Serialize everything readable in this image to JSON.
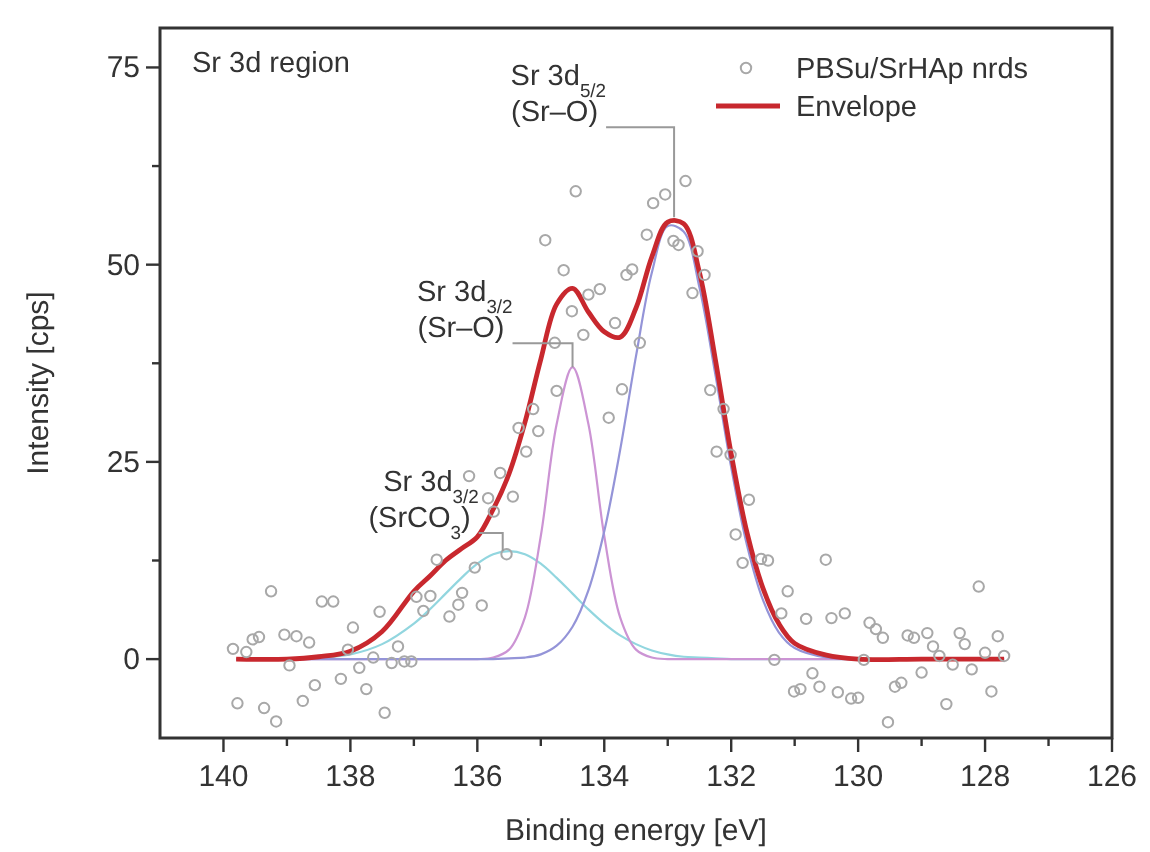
{
  "chart_data": {
    "type": "line",
    "xlabel": "Binding energy [eV]",
    "ylabel": "Intensity [cps]",
    "xlim": [
      141,
      126
    ],
    "ylim": [
      -10,
      80
    ],
    "xticks": [
      140,
      {
        "value": 139,
        "label": null
      },
      138,
      {
        "value": 137,
        "label": null
      },
      136,
      {
        "value": 135,
        "label": null
      },
      134,
      {
        "value": 133,
        "label": null
      },
      132,
      {
        "value": 131,
        "label": null
      },
      130,
      {
        "value": 129,
        "label": null
      },
      128,
      {
        "value": 127,
        "label": null
      },
      126
    ],
    "yticks": [
      0,
      {
        "value": 12.5,
        "label": null
      },
      25,
      {
        "value": 37.5,
        "label": null
      },
      50,
      {
        "value": 62.5,
        "label": null
      },
      75
    ],
    "grid": false,
    "legend": "top right",
    "x": [
      139.8,
      139,
      138.5,
      138,
      137.5,
      137,
      136.75,
      136.5,
      136.25,
      136,
      135.75,
      135.5,
      135.25,
      135,
      134.75,
      134.5,
      134.25,
      134,
      133.75,
      133.5,
      133.25,
      133,
      132.75,
      132.5,
      132.25,
      132,
      131.75,
      131.5,
      131.25,
      131,
      130.5,
      130,
      129,
      128,
      127.7
    ],
    "series": [
      {
        "name": "PBSu/SrHAp nrds",
        "type": "scatter",
        "marker": "circle",
        "color": "#a8a8a8",
        "x": [
          139.85,
          139.78,
          139.64,
          139.54,
          139.44,
          139.36,
          139.25,
          139.17,
          139.04,
          138.96,
          138.85,
          138.75,
          138.65,
          138.56,
          138.45,
          138.27,
          138.15,
          138.04,
          137.96,
          137.86,
          137.75,
          137.64,
          137.54,
          137.46,
          137.35,
          137.25,
          137.15,
          137.04,
          136.96,
          136.85,
          136.74,
          136.64,
          136.44,
          136.3,
          136.24,
          136.13,
          136.04,
          135.93,
          135.83,
          135.74,
          135.64,
          135.54,
          135.44,
          135.35,
          135.23,
          135.12,
          135.04,
          134.93,
          134.78,
          134.75,
          134.64,
          134.51,
          134.45,
          134.33,
          134.25,
          134.07,
          133.93,
          133.83,
          133.72,
          133.65,
          133.56,
          133.44,
          133.33,
          133.23,
          133.04,
          132.91,
          132.83,
          132.72,
          132.61,
          132.53,
          132.42,
          132.33,
          132.23,
          132.12,
          132.01,
          131.93,
          131.82,
          131.72,
          131.53,
          131.42,
          131.32,
          131.21,
          131.11,
          131.01,
          130.91,
          130.82,
          130.72,
          130.61,
          130.51,
          130.42,
          130.32,
          130.21,
          130.11,
          130,
          129.91,
          129.82,
          129.72,
          129.61,
          129.53,
          129.42,
          129.32,
          129.22,
          129.12,
          129,
          128.91,
          128.82,
          128.72,
          128.61,
          128.51,
          128.4,
          128.32,
          128.21,
          128.1,
          128,
          127.9,
          127.8,
          127.7
        ],
        "values": [
          1.3,
          -5.6,
          0.9,
          2.5,
          2.8,
          -6.2,
          8.6,
          -7.9,
          3.1,
          -0.8,
          2.9,
          -5.3,
          2.1,
          -3.3,
          7.3,
          7.3,
          -2.5,
          1.2,
          4,
          -1.1,
          -3.8,
          0.2,
          6,
          -6.8,
          -0.5,
          1.6,
          -0.3,
          -0.3,
          7.9,
          6.1,
          8,
          12.6,
          5.4,
          6.9,
          8.4,
          23.2,
          11.6,
          6.8,
          20.4,
          18.7,
          23.6,
          13.3,
          20.6,
          29.3,
          26.3,
          31.7,
          28.9,
          53.1,
          40.1,
          34,
          49.3,
          44.1,
          59.3,
          41.1,
          46.2,
          46.9,
          30.6,
          42.6,
          34.2,
          48.7,
          49.4,
          40.1,
          53.8,
          57.8,
          58.9,
          53,
          52.5,
          60.6,
          46.4,
          51.7,
          48.7,
          34.1,
          26.3,
          31.7,
          25.9,
          15.8,
          12.2,
          20.2,
          12.7,
          12.5,
          -0.1,
          5.8,
          8.6,
          -4.1,
          -3.8,
          5.1,
          -1.8,
          -3.5,
          12.6,
          5.2,
          -4.2,
          5.8,
          -5,
          -4.9,
          -0.1,
          4.6,
          3.8,
          2.7,
          -8,
          -3.5,
          -3,
          3,
          2.7,
          -1.7,
          3.3,
          1.6,
          0.4,
          -5.7,
          -0.7,
          3.3,
          1.9,
          -1.3,
          9.2,
          0.8,
          -4.1,
          2.9,
          0.4
        ]
      },
      {
        "color": "#92d6df",
        "values": [
          0,
          0,
          0.2,
          0.6,
          1.9,
          4.5,
          6.3,
          8.3,
          10.3,
          12.1,
          13.3,
          13.7,
          13.3,
          12.1,
          10.3,
          8.3,
          6.3,
          4.5,
          3,
          1.9,
          1.1,
          0.6,
          0.3,
          0.2,
          0.1,
          0,
          0,
          0,
          0,
          0,
          0,
          0,
          0,
          0,
          0
        ]
      },
      {
        "color": "#cc94d4",
        "values": [
          0,
          0,
          0,
          0,
          0,
          0,
          0,
          0,
          0,
          0,
          0.2,
          1.2,
          5.3,
          15.6,
          29.8,
          37,
          29.8,
          15.6,
          5.3,
          1.2,
          0.2,
          0,
          0,
          0,
          0,
          0,
          0,
          0,
          0,
          0,
          0,
          0,
          0,
          0,
          0
        ]
      },
      {
        "color": "#9494d8",
        "values": [
          0,
          0,
          0,
          0,
          0,
          0,
          0,
          0,
          0,
          0,
          0,
          0.1,
          0.2,
          0.6,
          1.7,
          4.1,
          8.7,
          16.2,
          26.5,
          38.4,
          49,
          54.9,
          54.2,
          47.1,
          36.1,
          24.3,
          14.4,
          7.5,
          3.4,
          1.4,
          0.2,
          0,
          0,
          0,
          0
        ]
      },
      {
        "name": "Envelope",
        "color": "#c8282e",
        "values": [
          0,
          0,
          0.3,
          1,
          3.5,
          8.6,
          10.5,
          12.5,
          14,
          15.5,
          19,
          23.5,
          30,
          38,
          45,
          47,
          44,
          41.5,
          40.8,
          44.5,
          51,
          55.4,
          55.2,
          49,
          38,
          26,
          16,
          9,
          4.5,
          2,
          0.5,
          0,
          0,
          0,
          0
        ]
      }
    ],
    "annotations": [
      "Sr 3d region",
      {
        "text": "Sr 3d$_{5/2}$\n(Sr–O)",
        "x": 132.9,
        "y": 56
      },
      {
        "text": "Sr 3d$_{3/2}$\n(Sr–O)",
        "x": 134.5,
        "y": 37
      },
      {
        "text": "Sr 3d$_{3/2}$\n(SrCO$_{3}$)",
        "x": 135.6,
        "y": 13.7
      }
    ]
  }
}
